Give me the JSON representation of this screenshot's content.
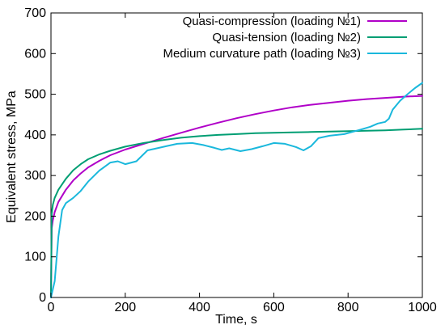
{
  "chart_data": {
    "type": "line",
    "title": "",
    "xlabel": "Time, s",
    "ylabel": "Equivalent stress, MPa",
    "xlim": [
      0,
      1000
    ],
    "ylim": [
      0,
      700
    ],
    "xticks": [
      0,
      200,
      400,
      600,
      800,
      1000
    ],
    "yticks": [
      0,
      100,
      200,
      300,
      400,
      500,
      600,
      700
    ],
    "grid": false,
    "legend_position": "top-right",
    "series": [
      {
        "name": "Quasi-compression (loading №1)",
        "color": "#b000c8",
        "x": [
          0,
          2,
          5,
          10,
          20,
          40,
          60,
          80,
          100,
          130,
          160,
          200,
          250,
          300,
          350,
          400,
          450,
          500,
          550,
          600,
          650,
          700,
          750,
          800,
          850,
          900,
          950,
          1000
        ],
        "y": [
          0,
          170,
          190,
          210,
          235,
          265,
          288,
          305,
          320,
          336,
          350,
          364,
          378,
          392,
          405,
          418,
          430,
          441,
          451,
          460,
          468,
          474,
          479,
          484,
          488,
          491,
          494,
          496
        ]
      },
      {
        "name": "Quasi-tension (loading №2)",
        "color": "#009e73",
        "x": [
          0,
          2,
          5,
          10,
          20,
          40,
          60,
          80,
          100,
          130,
          160,
          200,
          250,
          300,
          350,
          400,
          450,
          500,
          550,
          600,
          650,
          700,
          750,
          800,
          850,
          900,
          950,
          1000
        ],
        "y": [
          0,
          205,
          228,
          245,
          265,
          292,
          313,
          328,
          340,
          352,
          361,
          371,
          380,
          387,
          393,
          397,
          400,
          402,
          404,
          405,
          406,
          407,
          408,
          409,
          410,
          411,
          413,
          415
        ]
      },
      {
        "name": "Medium curvature path (loading №3)",
        "color": "#1ab8dc",
        "x": [
          0,
          10,
          20,
          30,
          40,
          60,
          80,
          100,
          130,
          160,
          180,
          200,
          230,
          260,
          280,
          310,
          340,
          380,
          410,
          440,
          460,
          480,
          510,
          540,
          570,
          600,
          630,
          660,
          680,
          700,
          720,
          750,
          790,
          830,
          860,
          880,
          900,
          910,
          920,
          940,
          960,
          980,
          1000
        ],
        "y": [
          0,
          40,
          150,
          215,
          232,
          245,
          262,
          285,
          312,
          332,
          335,
          328,
          335,
          362,
          366,
          372,
          378,
          380,
          375,
          368,
          363,
          367,
          360,
          365,
          372,
          380,
          378,
          370,
          362,
          372,
          392,
          398,
          402,
          412,
          420,
          428,
          432,
          440,
          462,
          484,
          500,
          515,
          528
        ]
      }
    ]
  }
}
